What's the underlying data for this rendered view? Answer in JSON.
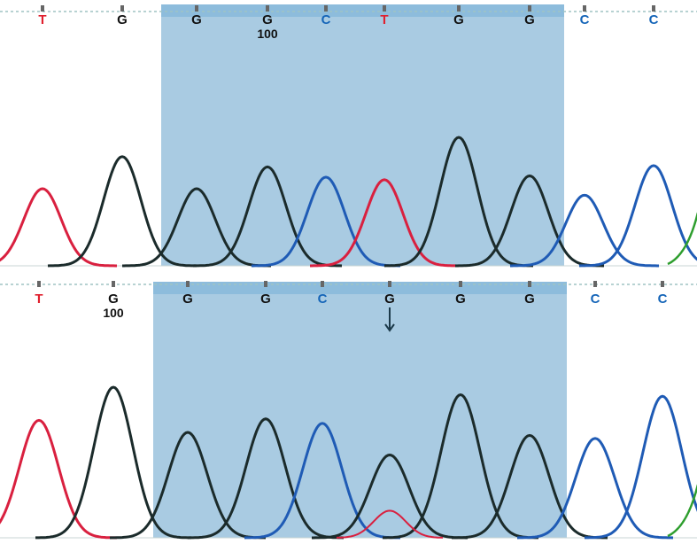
{
  "colors": {
    "A": "#2e9e2e",
    "C": "#1f5bb5",
    "G": "#1b2b2b",
    "T": "#d9203f",
    "label_C": "#1565b8",
    "label_G": "#111111",
    "label_T": "#e0202e",
    "highlight_fill": "#a9cbe2",
    "highlight_top": "#8dbcdc",
    "dotted_rule": "#9fc3c3",
    "tick": "#666666"
  },
  "tracks": [
    {
      "id": "top",
      "bases": [
        "T",
        "G",
        "G",
        "G",
        "C",
        "T",
        "G",
        "G",
        "C",
        "C"
      ],
      "position_marker": {
        "label": "100",
        "base_index": 3
      },
      "highlight": {
        "from_base": 2,
        "to_base": 7
      },
      "mutation_arrow": null,
      "peaks": [
        {
          "base": "T",
          "h": 0.6
        },
        {
          "base": "G",
          "h": 0.85
        },
        {
          "base": "G",
          "h": 0.6
        },
        {
          "base": "G",
          "h": 0.77
        },
        {
          "base": "C",
          "h": 0.69
        },
        {
          "base": "T",
          "h": 0.67
        },
        {
          "base": "G",
          "h": 1.0
        },
        {
          "base": "G",
          "h": 0.7
        },
        {
          "base": "C",
          "h": 0.55
        },
        {
          "base": "C",
          "h": 0.78
        }
      ],
      "minor_peaks": []
    },
    {
      "id": "bottom",
      "bases": [
        "T",
        "G",
        "G",
        "G",
        "C",
        "G",
        "G",
        "G",
        "C",
        "C"
      ],
      "position_marker": {
        "label": "100",
        "base_index": 1
      },
      "highlight": {
        "from_base": 2,
        "to_base": 7
      },
      "mutation_arrow": {
        "base_index": 5
      },
      "peaks": [
        {
          "base": "T",
          "h": 0.78
        },
        {
          "base": "G",
          "h": 1.0
        },
        {
          "base": "G",
          "h": 0.7
        },
        {
          "base": "G",
          "h": 0.79
        },
        {
          "base": "C",
          "h": 0.76
        },
        {
          "base": "G",
          "h": 0.55
        },
        {
          "base": "G",
          "h": 0.95
        },
        {
          "base": "G",
          "h": 0.68
        },
        {
          "base": "C",
          "h": 0.66
        },
        {
          "base": "C",
          "h": 0.94
        }
      ],
      "minor_peaks": [
        {
          "base": "T",
          "at_index": 5,
          "h": 0.18
        }
      ]
    }
  ]
}
